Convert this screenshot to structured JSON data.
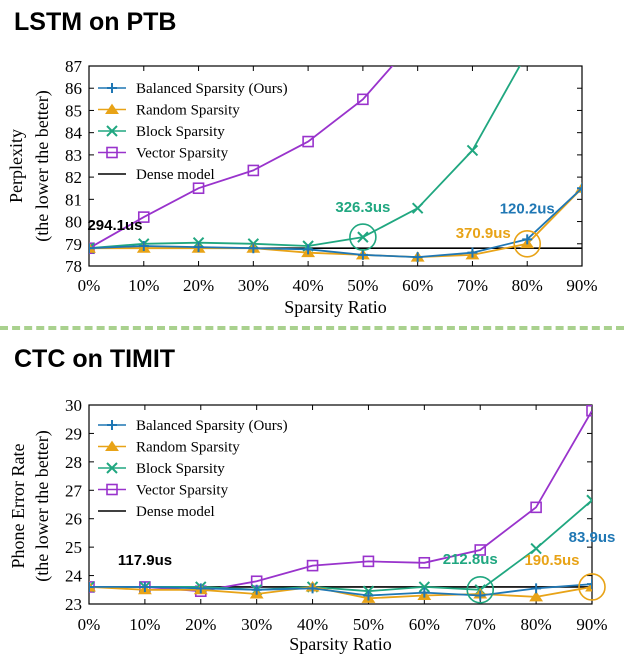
{
  "colors": {
    "balanced": "#1f77b4",
    "random": "#e8a317",
    "block": "#20a780",
    "vector": "#9933cc",
    "dense": "#000000",
    "divider": "#a9d18e"
  },
  "legend_labels": {
    "top": [
      "Balanced Sparsity (Ours)",
      "Random Sparsity",
      "Block Sparsity",
      "Vector Sparsity",
      "Dense model"
    ],
    "bottom": [
      "Balanced Sparsity (Ours)",
      "Random Sparsity",
      "Block Sparsity",
      "Vector Sparsity",
      "Dense model"
    ]
  },
  "chart_data": [
    {
      "type": "line",
      "title": "LSTM on PTB",
      "xlabel": "Sparsity Ratio",
      "ylabel": [
        "Perplexity",
        "(the lower the better)"
      ],
      "categories": [
        "0%",
        "10%",
        "20%",
        "30%",
        "40%",
        "50%",
        "60%",
        "70%",
        "80%",
        "90%"
      ],
      "x": [
        0,
        10,
        20,
        30,
        40,
        50,
        60,
        70,
        80,
        90
      ],
      "yticks": [
        78,
        79,
        80,
        81,
        82,
        83,
        84,
        85,
        86,
        87
      ],
      "ylim": [
        78,
        87
      ],
      "xlim": [
        0,
        90
      ],
      "legend": "top-left",
      "grid": false,
      "series": [
        {
          "name": "Balanced Sparsity (Ours)",
          "key": "balanced",
          "marker": "plus",
          "values": [
            78.8,
            78.9,
            78.85,
            78.8,
            78.75,
            78.5,
            78.4,
            78.6,
            79.2,
            81.5
          ]
        },
        {
          "name": "Random Sparsity",
          "key": "random",
          "marker": "triangle",
          "values": [
            78.8,
            78.8,
            78.8,
            78.8,
            78.6,
            78.5,
            78.4,
            78.5,
            79.0,
            81.5
          ]
        },
        {
          "name": "Block Sparsity",
          "key": "block",
          "marker": "x",
          "values": [
            78.8,
            79.0,
            79.05,
            79.0,
            78.9,
            79.3,
            80.6,
            83.2,
            87.6,
            null
          ]
        },
        {
          "name": "Vector Sparsity",
          "key": "vector",
          "marker": "square",
          "values": [
            78.8,
            80.2,
            81.5,
            82.3,
            83.6,
            85.5,
            88.3,
            null,
            null,
            null
          ]
        },
        {
          "name": "Dense model",
          "key": "dense",
          "marker": "none",
          "values": [
            78.8,
            78.8,
            78.8,
            78.8,
            78.8,
            78.8,
            78.8,
            78.8,
            78.8,
            78.8
          ]
        }
      ],
      "annotations": [
        {
          "text": "294.1us",
          "key": "dense",
          "x": 0,
          "y": 78.8
        },
        {
          "text": "326.3us",
          "key": "block",
          "x": 50,
          "y": 79.3
        },
        {
          "text": "370.9us",
          "key": "random",
          "x": 80,
          "y": 79.0
        },
        {
          "text": "120.2us",
          "key": "balanced",
          "x": 80,
          "y": 79.2
        }
      ]
    },
    {
      "type": "line",
      "title": "CTC on TIMIT",
      "xlabel": "Sparsity Ratio",
      "ylabel": [
        "Phone Error Rate",
        "(the lower the better)"
      ],
      "categories": [
        "0%",
        "10%",
        "20%",
        "30%",
        "40%",
        "50%",
        "60%",
        "70%",
        "80%",
        "90%"
      ],
      "x": [
        0,
        10,
        20,
        30,
        40,
        50,
        60,
        70,
        80,
        90
      ],
      "yticks": [
        23,
        24,
        25,
        26,
        27,
        28,
        29,
        30
      ],
      "ylim": [
        23,
        30
      ],
      "xlim": [
        0,
        90
      ],
      "legend": "top-left",
      "grid": false,
      "series": [
        {
          "name": "Balanced Sparsity (Ours)",
          "key": "balanced",
          "marker": "plus",
          "values": [
            23.6,
            23.6,
            23.55,
            23.5,
            23.55,
            23.3,
            23.4,
            23.3,
            23.55,
            23.7
          ]
        },
        {
          "name": "Random Sparsity",
          "key": "random",
          "marker": "triangle",
          "values": [
            23.6,
            23.5,
            23.5,
            23.35,
            23.6,
            23.2,
            23.3,
            23.35,
            23.25,
            23.6
          ]
        },
        {
          "name": "Block Sparsity",
          "key": "block",
          "marker": "x",
          "values": [
            23.6,
            23.6,
            23.6,
            23.5,
            23.6,
            23.45,
            23.6,
            23.5,
            24.95,
            26.65
          ]
        },
        {
          "name": "Vector Sparsity",
          "key": "vector",
          "marker": "square",
          "values": [
            23.6,
            23.6,
            23.45,
            23.8,
            24.35,
            24.5,
            24.45,
            24.9,
            26.4,
            29.8
          ]
        },
        {
          "name": "Dense model",
          "key": "dense",
          "marker": "none",
          "values": [
            23.6,
            23.6,
            23.6,
            23.6,
            23.6,
            23.6,
            23.6,
            23.6,
            23.6,
            23.6
          ]
        }
      ],
      "annotations": [
        {
          "text": "117.9us",
          "key": "dense",
          "x": 0,
          "y": 23.6
        },
        {
          "text": "212.8us",
          "key": "block",
          "x": 70,
          "y": 23.5
        },
        {
          "text": "190.5us",
          "key": "random",
          "x": 90,
          "y": 23.6
        },
        {
          "text": "83.9us",
          "key": "balanced",
          "x": 90,
          "y": 23.7
        }
      ]
    }
  ]
}
